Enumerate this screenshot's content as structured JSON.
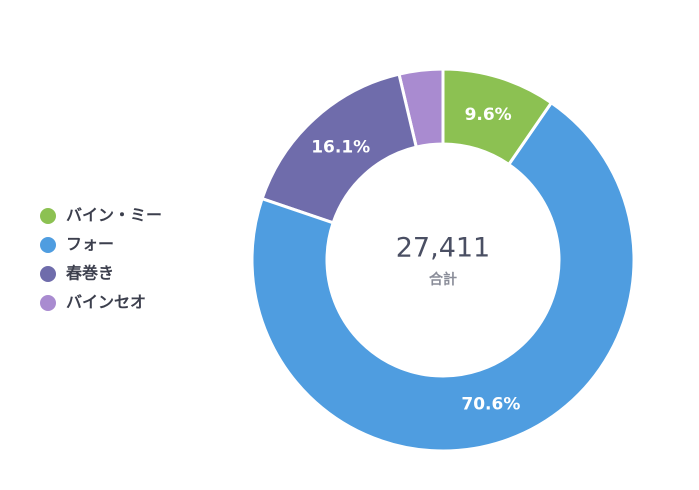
{
  "chart_data": {
    "type": "donut",
    "categories": [
      "バイン・ミー",
      "フォー",
      "春巻き",
      "バインセオ"
    ],
    "values": [
      9.6,
      70.6,
      16.1,
      3.7
    ],
    "value_labels": [
      "9.6%",
      "70.6%",
      "16.1%",
      null
    ],
    "colors": [
      "#8cc152",
      "#4f9de0",
      "#6f6cab",
      "#a98bd0"
    ],
    "center_total": {
      "value": 27411,
      "label": "27,411"
    },
    "center_caption": "合計",
    "legend": "left"
  }
}
